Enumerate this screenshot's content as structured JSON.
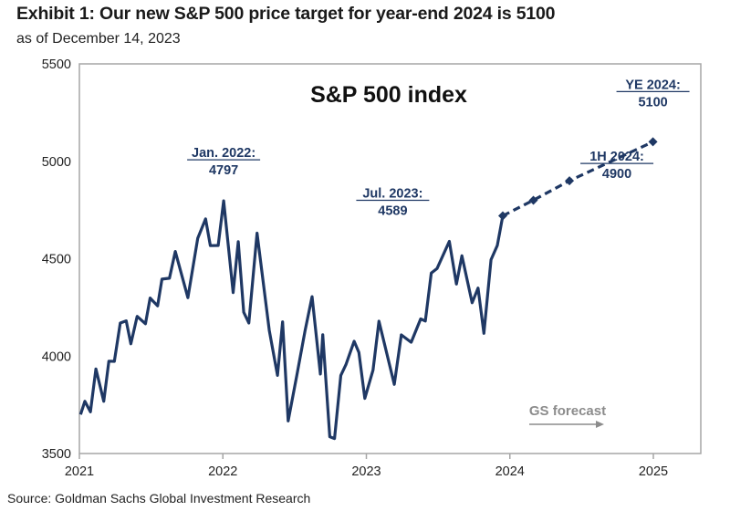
{
  "title": "Exhibit 1: Our new S&P 500 price target for year-end 2024 is 5100",
  "subtitle": "as of December 14, 2023",
  "source": "Source: Goldman Sachs Global Investment Research",
  "chart_data": {
    "type": "line",
    "title": "S&P 500 index",
    "xlabel": "",
    "ylabel": "",
    "xlim": [
      2021,
      2025
    ],
    "ylim": [
      3500,
      5500
    ],
    "x_ticks": [
      "2021",
      "2022",
      "2023",
      "2024",
      "2025"
    ],
    "y_ticks": [
      "5500",
      "5000",
      "4500",
      "4000",
      "3500"
    ],
    "grid": false,
    "colors": {
      "line": "#1f3864",
      "forecast_note": "#8c8c8c",
      "frame": "#a6a6a6"
    },
    "series": [
      {
        "style": "solid",
        "points": [
          [
            "2021-01-04",
            3700
          ],
          [
            "2021-01-15",
            3768
          ],
          [
            "2021-01-29",
            3714
          ],
          [
            "2021-02-12",
            3934
          ],
          [
            "2021-03-04",
            3768
          ],
          [
            "2021-03-17",
            3974
          ],
          [
            "2021-03-31",
            3973
          ],
          [
            "2021-04-15",
            4170
          ],
          [
            "2021-04-30",
            4181
          ],
          [
            "2021-05-12",
            4063
          ],
          [
            "2021-05-28",
            4204
          ],
          [
            "2021-06-18",
            4166
          ],
          [
            "2021-06-30",
            4298
          ],
          [
            "2021-07-19",
            4258
          ],
          [
            "2021-07-30",
            4395
          ],
          [
            "2021-08-18",
            4400
          ],
          [
            "2021-09-02",
            4537
          ],
          [
            "2021-10-04",
            4300
          ],
          [
            "2021-10-29",
            4605
          ],
          [
            "2021-11-18",
            4704
          ],
          [
            "2021-11-30",
            4567
          ],
          [
            "2021-12-20",
            4568
          ],
          [
            "2022-01-03",
            4797
          ],
          [
            "2022-01-27",
            4326
          ],
          [
            "2022-02-09",
            4587
          ],
          [
            "2022-02-23",
            4225
          ],
          [
            "2022-03-08",
            4170
          ],
          [
            "2022-03-29",
            4631
          ],
          [
            "2022-04-29",
            4132
          ],
          [
            "2022-05-20",
            3901
          ],
          [
            "2022-06-02",
            4176
          ],
          [
            "2022-06-16",
            3667
          ],
          [
            "2022-07-08",
            3899
          ],
          [
            "2022-07-29",
            4130
          ],
          [
            "2022-08-16",
            4305
          ],
          [
            "2022-09-06",
            3908
          ],
          [
            "2022-09-12",
            4110
          ],
          [
            "2022-09-30",
            3586
          ],
          [
            "2022-10-12",
            3577
          ],
          [
            "2022-10-28",
            3901
          ],
          [
            "2022-11-10",
            3956
          ],
          [
            "2022-12-01",
            4076
          ],
          [
            "2022-12-13",
            4019
          ],
          [
            "2022-12-28",
            3783
          ],
          [
            "2023-01-18",
            3928
          ],
          [
            "2023-02-02",
            4179
          ],
          [
            "2023-03-13",
            3855
          ],
          [
            "2023-03-31",
            4109
          ],
          [
            "2023-04-25",
            4071
          ],
          [
            "2023-05-19",
            4191
          ],
          [
            "2023-05-31",
            4180
          ],
          [
            "2023-06-15",
            4426
          ],
          [
            "2023-06-30",
            4450
          ],
          [
            "2023-07-31",
            4589
          ],
          [
            "2023-08-18",
            4370
          ],
          [
            "2023-09-01",
            4515
          ],
          [
            "2023-09-27",
            4274
          ],
          [
            "2023-10-12",
            4349
          ],
          [
            "2023-10-27",
            4117
          ],
          [
            "2023-11-14",
            4495
          ],
          [
            "2023-11-30",
            4568
          ],
          [
            "2023-12-14",
            4720
          ]
        ]
      },
      {
        "style": "dashed",
        "markers": "diamond",
        "points": [
          [
            "2023-12-14",
            4720
          ],
          [
            "2024-03-01",
            4800
          ],
          [
            "2024-06-01",
            4900
          ],
          [
            "2024-12-31",
            5100
          ]
        ]
      }
    ],
    "annotations": [
      {
        "label": "Jan. 2022:",
        "value": "4797",
        "at": [
          "2022-01-03",
          4797
        ]
      },
      {
        "label": "Jul. 2023:",
        "value": "4589",
        "at": [
          "2023-07-31",
          4589
        ]
      },
      {
        "label": "1H 2024:",
        "value": "4900",
        "at": [
          "2024-06-01",
          4900
        ]
      },
      {
        "label": "YE 2024:",
        "value": "5100",
        "at": [
          "2024-12-31",
          5100
        ]
      }
    ],
    "forecast_note": "GS forecast"
  }
}
